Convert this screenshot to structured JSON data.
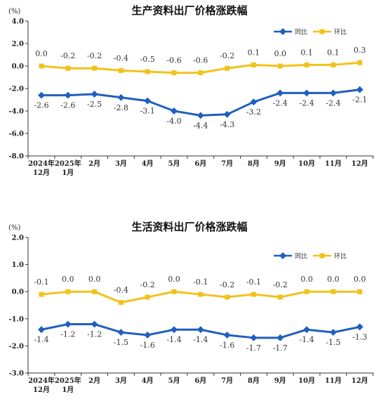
{
  "chart_data": [
    {
      "type": "line",
      "title": "生产资料出厂价格涨跌幅",
      "unit": "(%)",
      "categories": [
        [
          "2024年",
          "12月"
        ],
        [
          "2025年",
          "1月"
        ],
        [
          "2月"
        ],
        [
          "3月"
        ],
        [
          "4月"
        ],
        [
          "5月"
        ],
        [
          "6月"
        ],
        [
          "7月"
        ],
        [
          "8月"
        ],
        [
          "9月"
        ],
        [
          "10月"
        ],
        [
          "11月"
        ],
        [
          "12月"
        ]
      ],
      "ylim": [
        -8.0,
        4.0
      ],
      "yticks": [
        "4.0",
        "2.0",
        "0.0",
        "-2.0",
        "-4.0",
        "-6.0",
        "-8.0"
      ],
      "ytick_values": [
        4,
        2,
        0,
        -2,
        -4,
        -6,
        -8
      ],
      "legend_position": "top-right",
      "series": [
        {
          "name": "同比",
          "color": "#1f5fbf",
          "values": [
            -2.6,
            -2.6,
            -2.5,
            -2.8,
            -3.1,
            -4.0,
            -4.4,
            -4.3,
            -3.2,
            -2.4,
            -2.4,
            -2.4,
            -2.1
          ],
          "labels": [
            "-2.6",
            "-2.6",
            "-2.5",
            "-2.8",
            "-3.1",
            "-4.0",
            "-4.4",
            "-4.3",
            "-3.2",
            "-2.4",
            "-2.4",
            "-2.4",
            "-2.1"
          ]
        },
        {
          "name": "环比",
          "color": "#f2c21b",
          "values": [
            0.0,
            -0.2,
            -0.2,
            -0.4,
            -0.5,
            -0.6,
            -0.6,
            -0.2,
            0.1,
            0.0,
            0.1,
            0.1,
            0.3
          ],
          "labels": [
            "0.0",
            "-0.2",
            "-0.2",
            "-0.4",
            "-0.5",
            "-0.6",
            "-0.6",
            "-0.2",
            "0.1",
            "0.0",
            "0.1",
            "0.1",
            "0.3"
          ]
        }
      ]
    },
    {
      "type": "line",
      "title": "生活资料出厂价格涨跌幅",
      "unit": "(%)",
      "categories": [
        [
          "2024年",
          "12月"
        ],
        [
          "2025年",
          "1月"
        ],
        [
          "2月"
        ],
        [
          "3月"
        ],
        [
          "4月"
        ],
        [
          "5月"
        ],
        [
          "6月"
        ],
        [
          "7月"
        ],
        [
          "8月"
        ],
        [
          "9月"
        ],
        [
          "10月"
        ],
        [
          "11月"
        ],
        [
          "12月"
        ]
      ],
      "ylim": [
        -3.0,
        2.0
      ],
      "yticks": [
        "2.0",
        "1.0",
        "0.0",
        "-1.0",
        "-2.0",
        "-3.0"
      ],
      "ytick_values": [
        2,
        1,
        0,
        -1,
        -2,
        -3
      ],
      "legend_position": "top-right",
      "series": [
        {
          "name": "同比",
          "color": "#1f5fbf",
          "values": [
            -1.4,
            -1.2,
            -1.2,
            -1.5,
            -1.6,
            -1.4,
            -1.4,
            -1.6,
            -1.7,
            -1.7,
            -1.4,
            -1.5,
            -1.3
          ],
          "labels": [
            "-1.4",
            "-1.2",
            "-1.2",
            "-1.5",
            "-1.6",
            "-1.4",
            "-1.4",
            "-1.6",
            "-1.7",
            "-1.7",
            "-1.4",
            "-1.5",
            "-1.3"
          ]
        },
        {
          "name": "环比",
          "color": "#f2c21b",
          "values": [
            -0.1,
            0.0,
            0.0,
            -0.4,
            -0.2,
            0.0,
            -0.1,
            -0.2,
            -0.1,
            -0.2,
            0.0,
            0.0,
            0.0
          ],
          "labels": [
            "-0.1",
            "0.0",
            "0.0",
            "-0.4",
            "-0.2",
            "0.0",
            "-0.1",
            "-0.2",
            "-0.1",
            "-0.2",
            "0.0",
            "0.0",
            "0.0"
          ]
        }
      ]
    }
  ]
}
